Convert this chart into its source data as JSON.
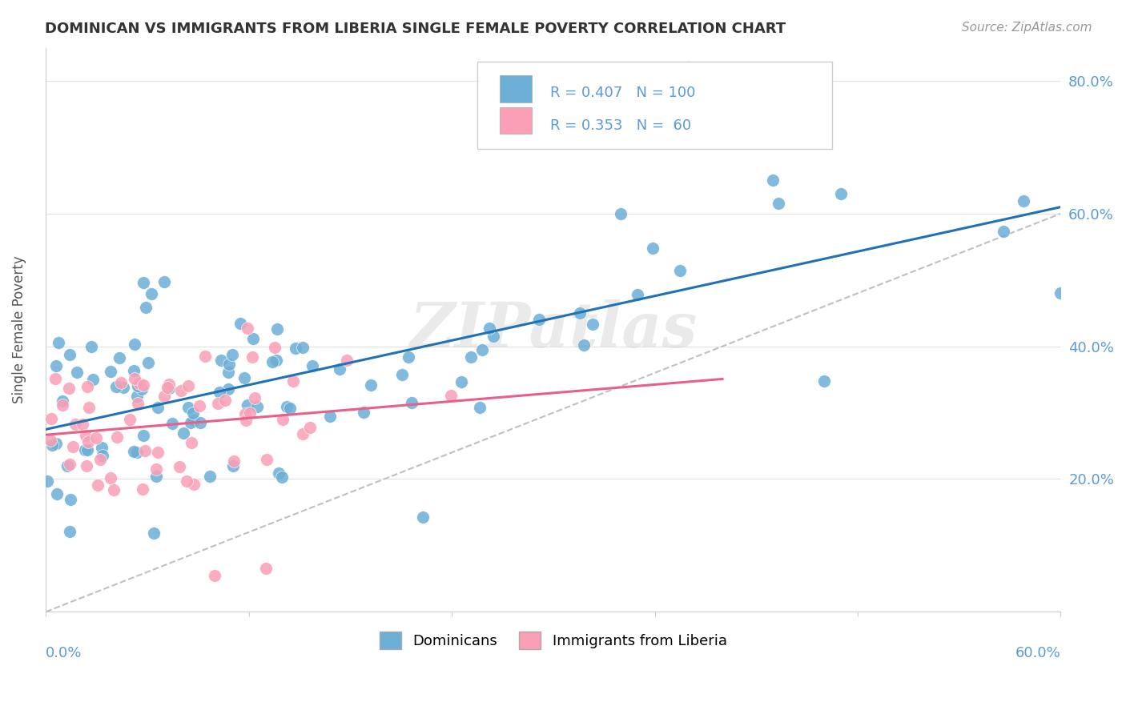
{
  "title": "DOMINICAN VS IMMIGRANTS FROM LIBERIA SINGLE FEMALE POVERTY CORRELATION CHART",
  "source": "Source: ZipAtlas.com",
  "ylabel": "Single Female Poverty",
  "legend_label1": "Dominicans",
  "legend_label2": "Immigrants from Liberia",
  "R1": "0.407",
  "N1": "100",
  "R2": "0.353",
  "N2": "60",
  "blue_color": "#6baed6",
  "pink_color": "#fa9fb5",
  "blue_line_color": "#2171b5",
  "pink_line_color": "#e8608a",
  "dashed_line_color": "#c0c0c0",
  "axis_color": "#5b9bd5",
  "watermark": "ZIPatlas"
}
